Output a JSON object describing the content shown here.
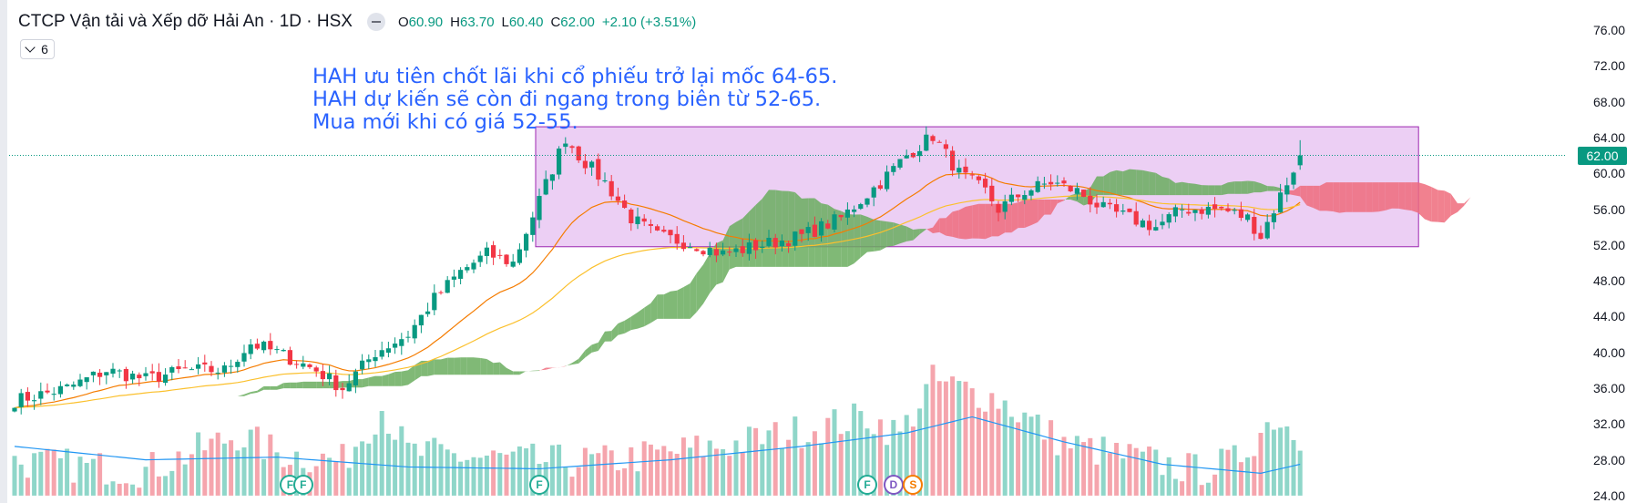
{
  "header": {
    "symbol_title": "CTCP Vận tải và Xếp dỡ Hải An · 1D · HSX",
    "open_label": "O",
    "open": "60.90",
    "high_label": "H",
    "high": "63.70",
    "low_label": "L",
    "low": "60.40",
    "close_label": "C",
    "close": "62.00",
    "change": "+2.10 (+3.51%)"
  },
  "indicators_toggle": {
    "count": "6",
    "icon": "chevron-down-icon"
  },
  "annotation": [
    "HAH ưu tiên chốt lãi khi cổ phiếu trở lại mốc 64-65.",
    "HAH dự kiến sẽ còn đi ngang trong biên từ 52-65.",
    "Mua mới khi có giá 52-55."
  ],
  "last_price_tag": "62.00",
  "colors": {
    "up": "#089981",
    "down": "#f23645",
    "cloud_bull": "#6aad5e",
    "cloud_bear": "#ee6b7b",
    "box_fill": "#e6bff0",
    "box_border": "#9c27b0",
    "ema_fast": "#f57c00",
    "ema_slow": "#fbc02d",
    "volume_ma": "#2196f3",
    "annotation_text": "#2962ff"
  },
  "events": [
    {
      "letter": "F",
      "type": "financials"
    },
    {
      "letter": "F",
      "type": "financials"
    },
    {
      "letter": "F",
      "type": "financials"
    },
    {
      "letter": "F",
      "type": "financials"
    },
    {
      "letter": "D",
      "type": "dividend"
    },
    {
      "letter": "S",
      "type": "split"
    }
  ],
  "chart_data": {
    "type": "candlestick",
    "y_axis": {
      "ticks": [
        "76.00",
        "72.00",
        "68.00",
        "64.00",
        "60.00",
        "56.00",
        "52.00",
        "48.00",
        "44.00",
        "40.00",
        "36.00",
        "32.00",
        "28.00",
        "24.00"
      ],
      "ylim": [
        24,
        77.5
      ],
      "position": "right"
    },
    "range_box": {
      "low": 51.8,
      "high": 65.2
    },
    "last_close": 62.0,
    "anchors": [
      [
        0,
        34.6
      ],
      [
        8,
        36
      ],
      [
        14,
        38
      ],
      [
        20,
        37
      ],
      [
        26,
        38
      ],
      [
        32,
        38
      ],
      [
        36,
        41
      ],
      [
        40,
        40
      ],
      [
        46,
        38
      ],
      [
        50,
        36
      ],
      [
        55,
        40
      ],
      [
        60,
        42
      ],
      [
        64,
        46
      ],
      [
        68,
        49
      ],
      [
        72,
        51
      ],
      [
        76,
        50
      ],
      [
        80,
        57
      ],
      [
        84,
        64
      ],
      [
        86,
        62
      ],
      [
        90,
        59
      ],
      [
        94,
        55
      ],
      [
        98,
        53
      ],
      [
        104,
        52
      ],
      [
        108,
        51
      ],
      [
        114,
        52
      ],
      [
        120,
        53
      ],
      [
        126,
        55
      ],
      [
        132,
        59
      ],
      [
        136,
        62
      ],
      [
        140,
        64.2
      ],
      [
        144,
        60
      ],
      [
        148,
        58
      ],
      [
        150,
        56
      ],
      [
        154,
        58
      ],
      [
        158,
        59
      ],
      [
        162,
        58
      ],
      [
        166,
        56
      ],
      [
        170,
        55
      ],
      [
        174,
        54
      ],
      [
        178,
        56
      ],
      [
        184,
        56
      ],
      [
        188,
        55
      ],
      [
        190,
        53
      ],
      [
        192,
        56
      ],
      [
        196,
        62
      ]
    ],
    "volume_anchors": [
      [
        0,
        27
      ],
      [
        20,
        26
      ],
      [
        34,
        30
      ],
      [
        40,
        28
      ],
      [
        50,
        27
      ],
      [
        56,
        33
      ],
      [
        60,
        28
      ],
      [
        80,
        27
      ],
      [
        90,
        27
      ],
      [
        110,
        29
      ],
      [
        130,
        32
      ],
      [
        135,
        30
      ],
      [
        140,
        36
      ],
      [
        150,
        34
      ],
      [
        160,
        29
      ],
      [
        180,
        26
      ],
      [
        186,
        27
      ],
      [
        192,
        32
      ],
      [
        196,
        30
      ]
    ],
    "volume_ma_anchors": [
      [
        0,
        29.5
      ],
      [
        20,
        28
      ],
      [
        40,
        28.3
      ],
      [
        60,
        27.2
      ],
      [
        80,
        27
      ],
      [
        100,
        28
      ],
      [
        120,
        29.5
      ],
      [
        136,
        31
      ],
      [
        146,
        32.8
      ],
      [
        160,
        30
      ],
      [
        175,
        27.5
      ],
      [
        190,
        26.5
      ],
      [
        196,
        27.5
      ]
    ]
  }
}
